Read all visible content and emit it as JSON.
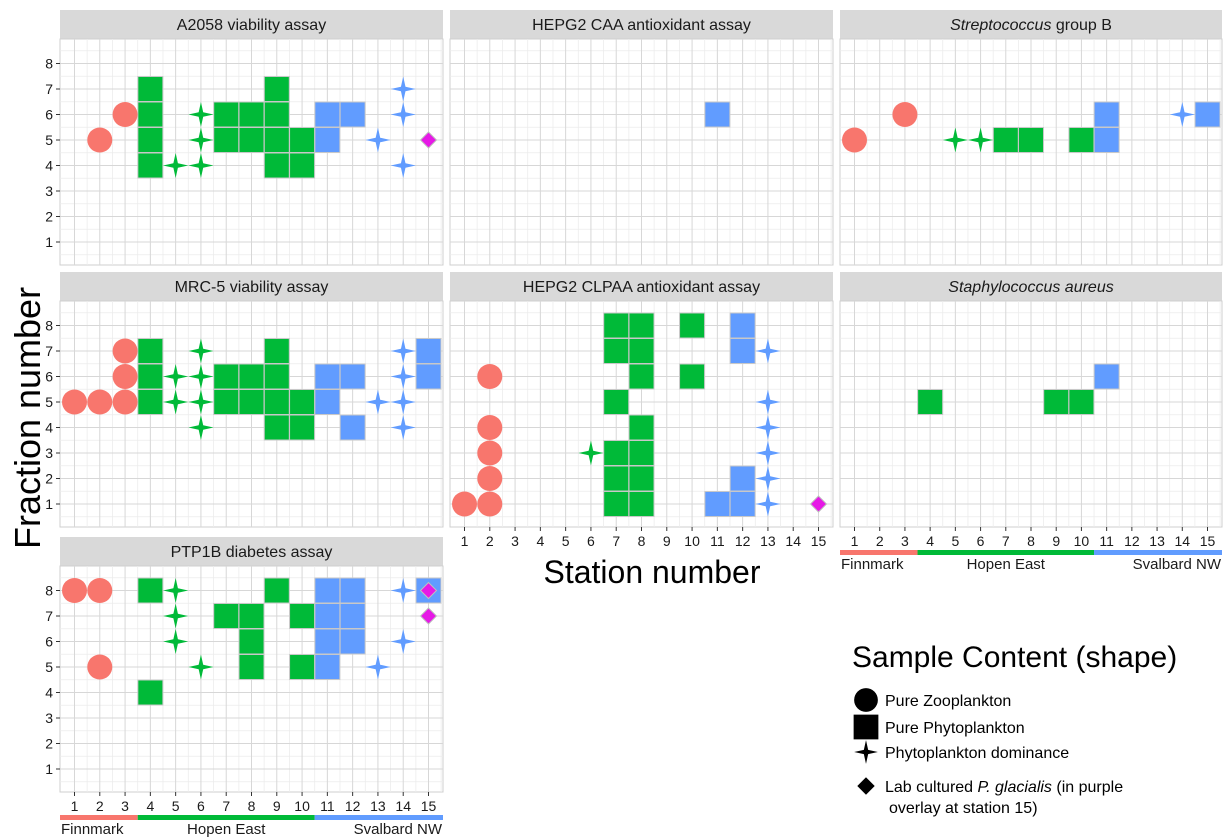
{
  "chart_data": {
    "type": "scatter",
    "ylabel": "Fraction number",
    "xlabel": "Station number",
    "x_ticks": [
      1,
      2,
      3,
      4,
      5,
      6,
      7,
      8,
      9,
      10,
      11,
      12,
      13,
      14,
      15
    ],
    "y_ticks": [
      1,
      2,
      3,
      4,
      5,
      6,
      7,
      8
    ],
    "xlim": [
      1,
      15
    ],
    "ylim": [
      1,
      8
    ],
    "grid": true,
    "colors": {
      "Finnmark": "#f8766d",
      "Hopen East": "#00ba38",
      "Svalbard NW": "#619cff",
      "lab": "#e619e6"
    },
    "regions": [
      {
        "name": "Finnmark",
        "stations": [
          1,
          3
        ],
        "color": "#f8766d"
      },
      {
        "name": "Hopen East",
        "stations": [
          4,
          10
        ],
        "color": "#00ba38"
      },
      {
        "name": "Svalbard NW",
        "stations": [
          11,
          15
        ],
        "color": "#619cff"
      }
    ],
    "legend": {
      "title": "Sample Content (shape)",
      "position": "bottom-right",
      "items": [
        {
          "shape": "circle",
          "label": "Pure Zooplankton"
        },
        {
          "shape": "square",
          "label": "Pure Phytoplankton"
        },
        {
          "shape": "star",
          "label": "Phytoplankton dominance"
        },
        {
          "shape": "diamond",
          "label_parts": [
            {
              "text": "Lab cultured ",
              "italic": false
            },
            {
              "text": "P. glacialis",
              "italic": true
            },
            {
              "text": " (in purple",
              "italic": false
            }
          ],
          "label_line2": "overlay at station 15)"
        }
      ]
    },
    "panels": [
      {
        "title_parts": [
          {
            "text": "A2058 viability assay",
            "italic": false
          }
        ],
        "points": {
          "circle": [
            [
              2,
              5
            ],
            [
              3,
              6
            ]
          ],
          "square": [
            [
              4,
              4
            ],
            [
              4,
              5
            ],
            [
              4,
              6
            ],
            [
              4,
              7
            ],
            [
              7,
              5
            ],
            [
              7,
              6
            ],
            [
              8,
              5
            ],
            [
              8,
              6
            ],
            [
              9,
              4
            ],
            [
              9,
              5
            ],
            [
              9,
              6
            ],
            [
              9,
              7
            ],
            [
              10,
              4
            ],
            [
              10,
              5
            ],
            [
              11,
              5
            ],
            [
              11,
              6
            ],
            [
              12,
              6
            ]
          ],
          "star": [
            [
              5,
              4
            ],
            [
              6,
              4
            ],
            [
              6,
              5
            ],
            [
              6,
              6
            ],
            [
              13,
              5
            ],
            [
              14,
              4
            ],
            [
              14,
              6
            ],
            [
              14,
              7
            ]
          ],
          "diamond": [
            [
              15,
              5
            ]
          ]
        }
      },
      {
        "title_parts": [
          {
            "text": "HEPG2 CAA antioxidant assay",
            "italic": false
          }
        ],
        "points": {
          "circle": [],
          "square": [
            [
              11,
              6
            ]
          ],
          "star": [],
          "diamond": []
        }
      },
      {
        "title_parts": [
          {
            "text": "Streptococcus",
            "italic": true
          },
          {
            "text": " group B",
            "italic": false
          }
        ],
        "points": {
          "circle": [
            [
              1,
              5
            ],
            [
              3,
              6
            ]
          ],
          "square": [
            [
              7,
              5
            ],
            [
              8,
              5
            ],
            [
              10,
              5
            ],
            [
              11,
              5
            ],
            [
              11,
              6
            ],
            [
              15,
              6
            ]
          ],
          "star": [
            [
              5,
              5
            ],
            [
              6,
              5
            ],
            [
              14,
              6
            ]
          ],
          "diamond": []
        }
      },
      {
        "title_parts": [
          {
            "text": "MRC-5 viability assay",
            "italic": false
          }
        ],
        "points": {
          "circle": [
            [
              1,
              5
            ],
            [
              2,
              5
            ],
            [
              3,
              5
            ],
            [
              3,
              6
            ],
            [
              3,
              7
            ]
          ],
          "square": [
            [
              4,
              5
            ],
            [
              4,
              6
            ],
            [
              4,
              7
            ],
            [
              7,
              5
            ],
            [
              7,
              6
            ],
            [
              8,
              5
            ],
            [
              8,
              6
            ],
            [
              9,
              4
            ],
            [
              9,
              5
            ],
            [
              9,
              6
            ],
            [
              9,
              7
            ],
            [
              10,
              4
            ],
            [
              10,
              5
            ],
            [
              11,
              5
            ],
            [
              11,
              6
            ],
            [
              12,
              4
            ],
            [
              12,
              6
            ],
            [
              15,
              6
            ],
            [
              15,
              7
            ]
          ],
          "star": [
            [
              5,
              5
            ],
            [
              5,
              6
            ],
            [
              6,
              4
            ],
            [
              6,
              5
            ],
            [
              6,
              6
            ],
            [
              6,
              7
            ],
            [
              13,
              5
            ],
            [
              14,
              4
            ],
            [
              14,
              5
            ],
            [
              14,
              6
            ],
            [
              14,
              7
            ]
          ],
          "diamond": []
        }
      },
      {
        "title_parts": [
          {
            "text": "HEPG2 CLPAA antioxidant assay",
            "italic": false
          }
        ],
        "points": {
          "circle": [
            [
              1,
              1
            ],
            [
              2,
              1
            ],
            [
              2,
              2
            ],
            [
              2,
              3
            ],
            [
              2,
              4
            ],
            [
              2,
              6
            ]
          ],
          "square": [
            [
              7,
              1
            ],
            [
              7,
              2
            ],
            [
              7,
              3
            ],
            [
              7,
              5
            ],
            [
              7,
              7
            ],
            [
              7,
              8
            ],
            [
              8,
              1
            ],
            [
              8,
              2
            ],
            [
              8,
              3
            ],
            [
              8,
              4
            ],
            [
              8,
              6
            ],
            [
              8,
              7
            ],
            [
              8,
              8
            ],
            [
              10,
              6
            ],
            [
              10,
              8
            ],
            [
              11,
              1
            ],
            [
              12,
              1
            ],
            [
              12,
              2
            ],
            [
              12,
              7
            ],
            [
              12,
              8
            ]
          ],
          "star": [
            [
              6,
              3
            ],
            [
              13,
              1
            ],
            [
              13,
              2
            ],
            [
              13,
              3
            ],
            [
              13,
              4
            ],
            [
              13,
              5
            ],
            [
              13,
              7
            ]
          ],
          "diamond": [
            [
              15,
              1
            ]
          ]
        }
      },
      {
        "title_parts": [
          {
            "text": "Staphylococcus aureus",
            "italic": true
          }
        ],
        "points": {
          "circle": [],
          "square": [
            [
              4,
              5
            ],
            [
              9,
              5
            ],
            [
              10,
              5
            ],
            [
              11,
              6
            ]
          ],
          "star": [],
          "diamond": []
        }
      },
      {
        "title_parts": [
          {
            "text": "PTP1B diabetes assay",
            "italic": false
          }
        ],
        "points": {
          "circle": [
            [
              1,
              8
            ],
            [
              2,
              8
            ],
            [
              2,
              5
            ]
          ],
          "square": [
            [
              4,
              4
            ],
            [
              4,
              8
            ],
            [
              7,
              7
            ],
            [
              8,
              5
            ],
            [
              8,
              6
            ],
            [
              8,
              7
            ],
            [
              9,
              8
            ],
            [
              10,
              5
            ],
            [
              10,
              7
            ],
            [
              11,
              5
            ],
            [
              11,
              6
            ],
            [
              11,
              7
            ],
            [
              11,
              8
            ],
            [
              12,
              6
            ],
            [
              12,
              7
            ],
            [
              12,
              8
            ],
            [
              15,
              8
            ]
          ],
          "star": [
            [
              5,
              6
            ],
            [
              5,
              7
            ],
            [
              5,
              8
            ],
            [
              6,
              5
            ],
            [
              13,
              5
            ],
            [
              14,
              6
            ],
            [
              14,
              8
            ]
          ],
          "diamond": [
            [
              15,
              7
            ],
            [
              15,
              8
            ]
          ]
        }
      }
    ]
  }
}
